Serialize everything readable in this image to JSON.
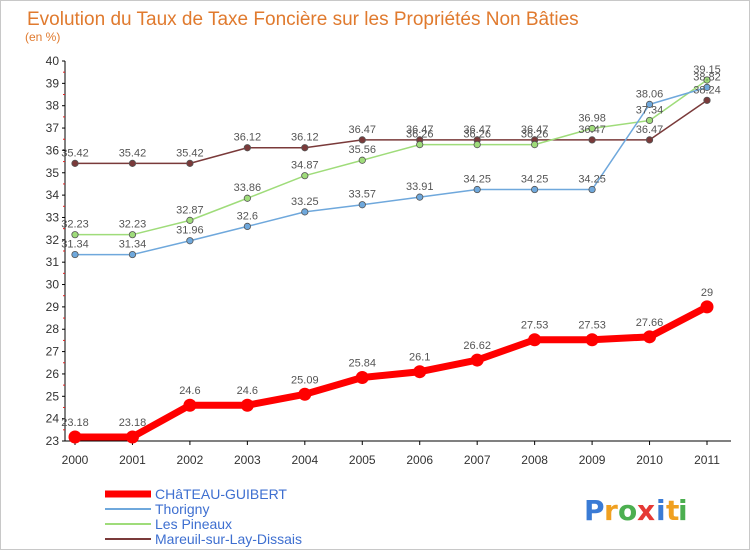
{
  "chart_data": {
    "type": "line",
    "title": "Evolution du Taux de Taxe Foncière sur les Propriétés Non Bâties",
    "subtitle": "(en %)",
    "x": [
      "2000",
      "2001",
      "2002",
      "2003",
      "2004",
      "2005",
      "2006",
      "2007",
      "2008",
      "2009",
      "2010",
      "2011"
    ],
    "ylim": [
      23,
      40
    ],
    "yticks": [
      23,
      24,
      25,
      26,
      27,
      28,
      29,
      30,
      31,
      32,
      33,
      34,
      35,
      36,
      37,
      38,
      39,
      40
    ],
    "grid": false,
    "legend_position": "bottom-left",
    "series": [
      {
        "name": "CHâTEAU-GUIBERT",
        "color": "#ff0000",
        "legend_color": "#3e6fd0",
        "values": [
          23.18,
          23.18,
          24.6,
          24.6,
          25.09,
          25.84,
          26.1,
          26.62,
          27.53,
          27.53,
          27.66,
          29
        ],
        "labels": [
          "23.18",
          "23.18",
          "24.6",
          "24.6",
          "25.09",
          "25.84",
          "26.1",
          "26.62",
          "27.53",
          "27.53",
          "27.66",
          "29"
        ]
      },
      {
        "name": "Thorigny",
        "color": "#6fa8dc",
        "legend_color": "#3e6fd0",
        "values": [
          31.34,
          31.34,
          31.96,
          32.6,
          33.25,
          33.57,
          33.91,
          34.25,
          34.25,
          34.25,
          38.06,
          38.82
        ],
        "labels": [
          "31.34",
          "31.34",
          "31.96",
          "32.6",
          "33.25",
          "33.57",
          "33.91",
          "34.25",
          "34.25",
          "34.25",
          "38.06",
          "38.82"
        ]
      },
      {
        "name": "Les Pineaux",
        "color": "#9fdc7a",
        "legend_color": "#3e6fd0",
        "values": [
          32.23,
          32.23,
          32.87,
          33.86,
          34.87,
          35.56,
          36.26,
          36.26,
          36.26,
          36.98,
          37.34,
          39.15
        ],
        "labels": [
          "32.23",
          "32.23",
          "32.87",
          "33.86",
          "34.87",
          "35.56",
          "36.26",
          "36.26",
          "36.26",
          "36.98",
          "37.34",
          "39.15"
        ]
      },
      {
        "name": "Mareuil-sur-Lay-Dissais",
        "color": "#7a3a3a",
        "legend_color": "#3e6fd0",
        "values": [
          35.42,
          35.42,
          35.42,
          36.12,
          36.12,
          36.47,
          36.47,
          36.47,
          36.47,
          36.47,
          36.47,
          38.24
        ],
        "labels": [
          "35.42",
          "35.42",
          "35.42",
          "36.12",
          "36.12",
          "36.47",
          "36.47",
          "36.47",
          "36.47",
          "36.47",
          "36.47",
          "38.24"
        ]
      }
    ]
  },
  "logo": {
    "letters": [
      "P",
      "r",
      "o",
      "x",
      "i",
      "t",
      "i"
    ],
    "colors": [
      "#3a7bd5",
      "#f0a020",
      "#4caf50",
      "#e53935",
      "#3a7bd5",
      "#f0a020",
      "#4caf50"
    ]
  }
}
